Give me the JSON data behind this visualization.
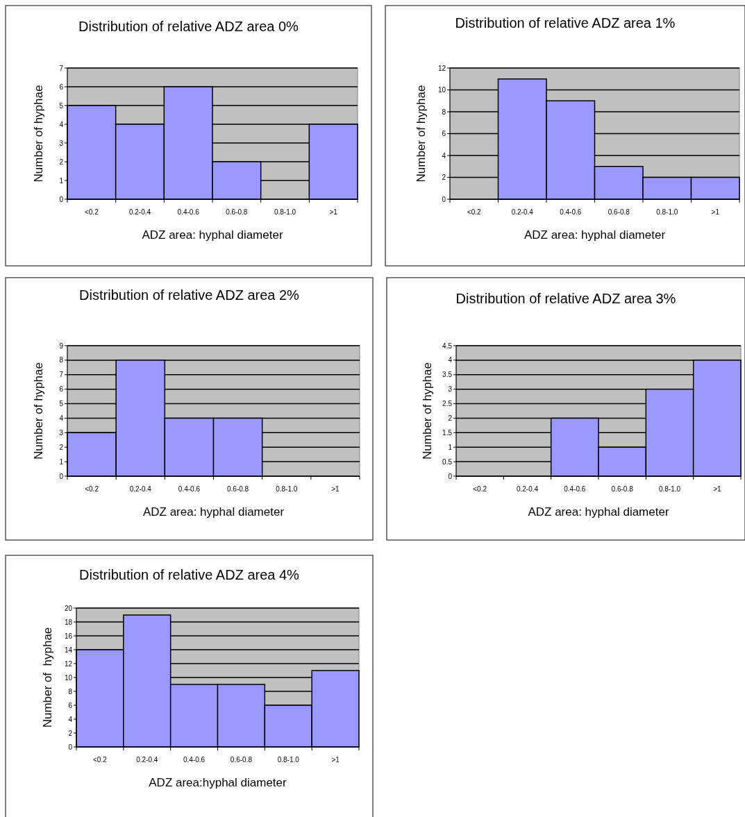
{
  "chart_data": [
    {
      "type": "bar",
      "title": "Distribution of relative ADZ area 0%",
      "xlabel": "ADZ area: hyphal diameter",
      "ylabel": "Number of hyphae",
      "categories": [
        "<0.2",
        "0.2-0.4",
        "0.4-0.6",
        "0.6-0.8",
        "0.8-1.0",
        ">1"
      ],
      "values": [
        5,
        4,
        6,
        2,
        0,
        4
      ],
      "color": "#9999ff",
      "ylim": [
        0,
        7
      ],
      "yticks": [
        0,
        1,
        2,
        3,
        4,
        5,
        6,
        7
      ],
      "grid": "y"
    },
    {
      "type": "bar",
      "title": "Distribution of relative ADZ area 1%",
      "xlabel": "ADZ area: hyphal diameter",
      "ylabel": "Number of hyphae",
      "categories": [
        "<0.2",
        "0.2-0.4",
        "0.4-0.6",
        "0.6-0.8",
        "0.8-1.0",
        ">1"
      ],
      "values": [
        0,
        11,
        9,
        3,
        2,
        2
      ],
      "color": "#9999ff",
      "ylim": [
        0,
        12
      ],
      "yticks": [
        0,
        2,
        4,
        6,
        8,
        10,
        12
      ],
      "grid": "y"
    },
    {
      "type": "bar",
      "title": "Distribution of relative ADZ area 2%",
      "xlabel": "ADZ area: hyphal diameter",
      "ylabel": "Number of hyphae",
      "categories": [
        "<0.2",
        "0.2-0.4",
        "0.4-0.6",
        "0.6-0.8",
        "0.8-1.0",
        ">1"
      ],
      "values": [
        3,
        8,
        4,
        4,
        0,
        0
      ],
      "color": "#9999ff",
      "ylim": [
        0,
        9
      ],
      "yticks": [
        0,
        1,
        2,
        3,
        4,
        5,
        6,
        7,
        8,
        9
      ],
      "grid": "y"
    },
    {
      "type": "bar",
      "title": "Distribution of relative ADZ area 3%",
      "xlabel": "ADZ area: hyphal diameter",
      "ylabel": "Number of hyphae",
      "categories": [
        "<0.2",
        "0.2-0.4",
        "0.4-0.6",
        "0.6-0.8",
        "0.8-1.0",
        ">1"
      ],
      "values": [
        0,
        0,
        2,
        1,
        3,
        4
      ],
      "color": "#9999ff",
      "ylim": [
        0,
        4.5
      ],
      "yticks": [
        0,
        0.5,
        1,
        1.5,
        2,
        2.5,
        3,
        3.5,
        4,
        4.5
      ],
      "grid": "y"
    },
    {
      "type": "bar",
      "title": "Distribution of relative ADZ area 4%",
      "xlabel": "ADZ area:hyphal diameter",
      "ylabel": "Number of  hyphae",
      "categories": [
        "<0.2",
        "0.2-0.4",
        "0.4-0.6",
        "0.6-0.8",
        "0.8-1.0",
        ">1"
      ],
      "values": [
        14,
        19,
        9,
        9,
        6,
        11
      ],
      "color": "#9999ff",
      "ylim": [
        0,
        20
      ],
      "yticks": [
        0,
        2,
        4,
        6,
        8,
        10,
        12,
        14,
        16,
        18,
        20
      ],
      "grid": "y"
    }
  ]
}
